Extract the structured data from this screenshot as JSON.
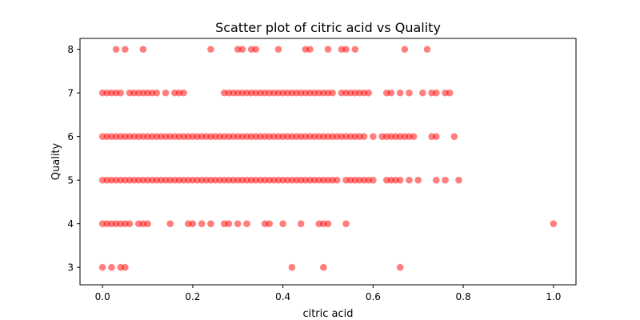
{
  "chart_data": {
    "type": "scatter",
    "title": "Scatter plot of citric acid vs Quality",
    "xlabel": "citric acid",
    "ylabel": "Quality",
    "xlim": [
      -0.05,
      1.05
    ],
    "ylim": [
      2.6,
      8.25
    ],
    "xticks": [
      0.0,
      0.2,
      0.4,
      0.6,
      0.8,
      1.0
    ],
    "xtick_labels": [
      "0.0",
      "0.2",
      "0.4",
      "0.6",
      "0.8",
      "1.0"
    ],
    "yticks": [
      3,
      4,
      5,
      6,
      7,
      8
    ],
    "ytick_labels": [
      "3",
      "4",
      "5",
      "6",
      "7",
      "8"
    ],
    "grid": false,
    "color": "#ff0000",
    "alpha": 0.5,
    "series": [
      {
        "points": [
          [
            0.0,
            3
          ],
          [
            0.02,
            3
          ],
          [
            0.04,
            3
          ],
          [
            0.05,
            3
          ],
          [
            0.42,
            3
          ],
          [
            0.49,
            3
          ],
          [
            0.66,
            3
          ],
          [
            0.0,
            4
          ],
          [
            0.01,
            4
          ],
          [
            0.02,
            4
          ],
          [
            0.03,
            4
          ],
          [
            0.04,
            4
          ],
          [
            0.05,
            4
          ],
          [
            0.06,
            4
          ],
          [
            0.08,
            4
          ],
          [
            0.09,
            4
          ],
          [
            0.1,
            4
          ],
          [
            0.15,
            4
          ],
          [
            0.19,
            4
          ],
          [
            0.2,
            4
          ],
          [
            0.22,
            4
          ],
          [
            0.24,
            4
          ],
          [
            0.27,
            4
          ],
          [
            0.28,
            4
          ],
          [
            0.3,
            4
          ],
          [
            0.32,
            4
          ],
          [
            0.36,
            4
          ],
          [
            0.37,
            4
          ],
          [
            0.4,
            4
          ],
          [
            0.44,
            4
          ],
          [
            0.48,
            4
          ],
          [
            0.49,
            4
          ],
          [
            0.5,
            4
          ],
          [
            0.54,
            4
          ],
          [
            1.0,
            4
          ],
          [
            0.0,
            5
          ],
          [
            0.01,
            5
          ],
          [
            0.02,
            5
          ],
          [
            0.03,
            5
          ],
          [
            0.04,
            5
          ],
          [
            0.05,
            5
          ],
          [
            0.06,
            5
          ],
          [
            0.07,
            5
          ],
          [
            0.08,
            5
          ],
          [
            0.09,
            5
          ],
          [
            0.1,
            5
          ],
          [
            0.11,
            5
          ],
          [
            0.12,
            5
          ],
          [
            0.13,
            5
          ],
          [
            0.14,
            5
          ],
          [
            0.15,
            5
          ],
          [
            0.16,
            5
          ],
          [
            0.17,
            5
          ],
          [
            0.18,
            5
          ],
          [
            0.19,
            5
          ],
          [
            0.2,
            5
          ],
          [
            0.21,
            5
          ],
          [
            0.22,
            5
          ],
          [
            0.23,
            5
          ],
          [
            0.24,
            5
          ],
          [
            0.25,
            5
          ],
          [
            0.26,
            5
          ],
          [
            0.27,
            5
          ],
          [
            0.28,
            5
          ],
          [
            0.29,
            5
          ],
          [
            0.3,
            5
          ],
          [
            0.31,
            5
          ],
          [
            0.32,
            5
          ],
          [
            0.33,
            5
          ],
          [
            0.34,
            5
          ],
          [
            0.35,
            5
          ],
          [
            0.36,
            5
          ],
          [
            0.37,
            5
          ],
          [
            0.38,
            5
          ],
          [
            0.39,
            5
          ],
          [
            0.4,
            5
          ],
          [
            0.41,
            5
          ],
          [
            0.42,
            5
          ],
          [
            0.43,
            5
          ],
          [
            0.44,
            5
          ],
          [
            0.45,
            5
          ],
          [
            0.46,
            5
          ],
          [
            0.47,
            5
          ],
          [
            0.48,
            5
          ],
          [
            0.49,
            5
          ],
          [
            0.5,
            5
          ],
          [
            0.51,
            5
          ],
          [
            0.52,
            5
          ],
          [
            0.54,
            5
          ],
          [
            0.55,
            5
          ],
          [
            0.56,
            5
          ],
          [
            0.57,
            5
          ],
          [
            0.58,
            5
          ],
          [
            0.59,
            5
          ],
          [
            0.6,
            5
          ],
          [
            0.63,
            5
          ],
          [
            0.64,
            5
          ],
          [
            0.65,
            5
          ],
          [
            0.66,
            5
          ],
          [
            0.68,
            5
          ],
          [
            0.7,
            5
          ],
          [
            0.74,
            5
          ],
          [
            0.76,
            5
          ],
          [
            0.79,
            5
          ],
          [
            0.0,
            6
          ],
          [
            0.01,
            6
          ],
          [
            0.02,
            6
          ],
          [
            0.03,
            6
          ],
          [
            0.04,
            6
          ],
          [
            0.05,
            6
          ],
          [
            0.06,
            6
          ],
          [
            0.07,
            6
          ],
          [
            0.08,
            6
          ],
          [
            0.09,
            6
          ],
          [
            0.1,
            6
          ],
          [
            0.11,
            6
          ],
          [
            0.12,
            6
          ],
          [
            0.13,
            6
          ],
          [
            0.14,
            6
          ],
          [
            0.15,
            6
          ],
          [
            0.16,
            6
          ],
          [
            0.17,
            6
          ],
          [
            0.18,
            6
          ],
          [
            0.19,
            6
          ],
          [
            0.2,
            6
          ],
          [
            0.21,
            6
          ],
          [
            0.22,
            6
          ],
          [
            0.23,
            6
          ],
          [
            0.24,
            6
          ],
          [
            0.25,
            6
          ],
          [
            0.26,
            6
          ],
          [
            0.27,
            6
          ],
          [
            0.28,
            6
          ],
          [
            0.29,
            6
          ],
          [
            0.3,
            6
          ],
          [
            0.31,
            6
          ],
          [
            0.32,
            6
          ],
          [
            0.33,
            6
          ],
          [
            0.34,
            6
          ],
          [
            0.35,
            6
          ],
          [
            0.36,
            6
          ],
          [
            0.37,
            6
          ],
          [
            0.38,
            6
          ],
          [
            0.39,
            6
          ],
          [
            0.4,
            6
          ],
          [
            0.41,
            6
          ],
          [
            0.42,
            6
          ],
          [
            0.43,
            6
          ],
          [
            0.44,
            6
          ],
          [
            0.45,
            6
          ],
          [
            0.46,
            6
          ],
          [
            0.47,
            6
          ],
          [
            0.48,
            6
          ],
          [
            0.49,
            6
          ],
          [
            0.5,
            6
          ],
          [
            0.51,
            6
          ],
          [
            0.52,
            6
          ],
          [
            0.53,
            6
          ],
          [
            0.54,
            6
          ],
          [
            0.55,
            6
          ],
          [
            0.56,
            6
          ],
          [
            0.57,
            6
          ],
          [
            0.58,
            6
          ],
          [
            0.6,
            6
          ],
          [
            0.62,
            6
          ],
          [
            0.63,
            6
          ],
          [
            0.64,
            6
          ],
          [
            0.65,
            6
          ],
          [
            0.66,
            6
          ],
          [
            0.67,
            6
          ],
          [
            0.68,
            6
          ],
          [
            0.69,
            6
          ],
          [
            0.73,
            6
          ],
          [
            0.74,
            6
          ],
          [
            0.78,
            6
          ],
          [
            0.0,
            7
          ],
          [
            0.01,
            7
          ],
          [
            0.02,
            7
          ],
          [
            0.03,
            7
          ],
          [
            0.04,
            7
          ],
          [
            0.06,
            7
          ],
          [
            0.07,
            7
          ],
          [
            0.08,
            7
          ],
          [
            0.09,
            7
          ],
          [
            0.1,
            7
          ],
          [
            0.11,
            7
          ],
          [
            0.12,
            7
          ],
          [
            0.14,
            7
          ],
          [
            0.16,
            7
          ],
          [
            0.17,
            7
          ],
          [
            0.18,
            7
          ],
          [
            0.27,
            7
          ],
          [
            0.28,
            7
          ],
          [
            0.29,
            7
          ],
          [
            0.3,
            7
          ],
          [
            0.31,
            7
          ],
          [
            0.32,
            7
          ],
          [
            0.33,
            7
          ],
          [
            0.34,
            7
          ],
          [
            0.35,
            7
          ],
          [
            0.36,
            7
          ],
          [
            0.37,
            7
          ],
          [
            0.38,
            7
          ],
          [
            0.39,
            7
          ],
          [
            0.4,
            7
          ],
          [
            0.41,
            7
          ],
          [
            0.42,
            7
          ],
          [
            0.43,
            7
          ],
          [
            0.44,
            7
          ],
          [
            0.45,
            7
          ],
          [
            0.46,
            7
          ],
          [
            0.47,
            7
          ],
          [
            0.48,
            7
          ],
          [
            0.49,
            7
          ],
          [
            0.5,
            7
          ],
          [
            0.51,
            7
          ],
          [
            0.53,
            7
          ],
          [
            0.54,
            7
          ],
          [
            0.55,
            7
          ],
          [
            0.56,
            7
          ],
          [
            0.57,
            7
          ],
          [
            0.58,
            7
          ],
          [
            0.59,
            7
          ],
          [
            0.63,
            7
          ],
          [
            0.64,
            7
          ],
          [
            0.66,
            7
          ],
          [
            0.68,
            7
          ],
          [
            0.71,
            7
          ],
          [
            0.73,
            7
          ],
          [
            0.74,
            7
          ],
          [
            0.76,
            7
          ],
          [
            0.77,
            7
          ],
          [
            0.03,
            8
          ],
          [
            0.05,
            8
          ],
          [
            0.09,
            8
          ],
          [
            0.24,
            8
          ],
          [
            0.3,
            8
          ],
          [
            0.31,
            8
          ],
          [
            0.33,
            8
          ],
          [
            0.34,
            8
          ],
          [
            0.39,
            8
          ],
          [
            0.45,
            8
          ],
          [
            0.46,
            8
          ],
          [
            0.5,
            8
          ],
          [
            0.53,
            8
          ],
          [
            0.54,
            8
          ],
          [
            0.56,
            8
          ],
          [
            0.67,
            8
          ],
          [
            0.72,
            8
          ]
        ]
      }
    ]
  }
}
